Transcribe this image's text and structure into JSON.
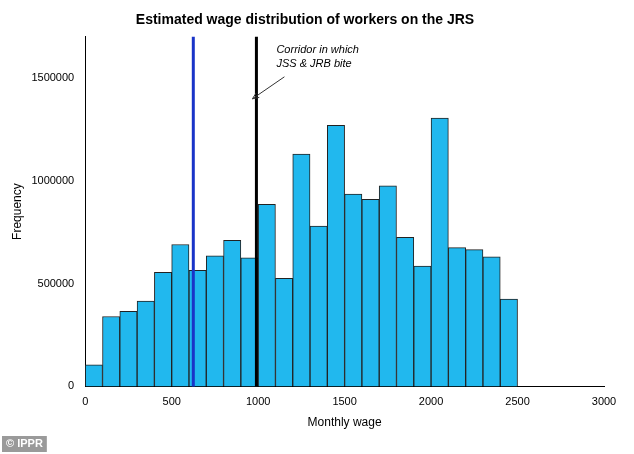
{
  "chart_data": {
    "type": "histogram",
    "title": "Estimated wage distribution of workers on the JRS",
    "x_label": "Monthly wage",
    "y_label": "Frequency",
    "bins": [
      0,
      100,
      200,
      300,
      400,
      500,
      600,
      700,
      800,
      900,
      1000,
      1100,
      1200,
      1300,
      1400,
      1500,
      1600,
      1700,
      1800,
      1900,
      2000,
      2100,
      2200,
      2300,
      2400,
      2500
    ],
    "values": [
      105000,
      340000,
      365000,
      415000,
      555000,
      690000,
      565000,
      635000,
      710000,
      625000,
      885000,
      525000,
      1130000,
      780000,
      1270000,
      935000,
      910000,
      975000,
      725000,
      585000,
      1305000,
      675000,
      665000,
      630000,
      425000
    ],
    "color": "#21b8ee",
    "reference_lines": [
      {
        "x": 625,
        "color": "#1a34c8"
      },
      {
        "x": 990,
        "color": "#000000"
      }
    ],
    "annotation": [
      "Corridor in which",
      "JSS & JRB bite"
    ],
    "source": "© IPPR",
    "xlim": [
      0,
      3000
    ],
    "xticks": [
      0,
      500,
      1000,
      1500,
      2000,
      2500,
      3000
    ],
    "ylim": [
      0,
      1700000
    ],
    "yticks": [
      0,
      500000,
      1000000,
      1500000
    ],
    "grid": false
  }
}
